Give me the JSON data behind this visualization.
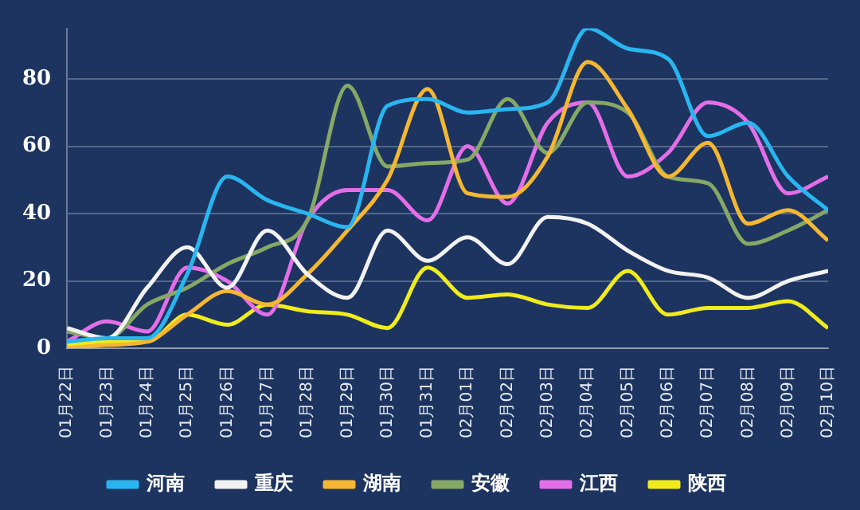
{
  "chart_data": {
    "type": "line",
    "categories": [
      "01月22日",
      "01月23日",
      "01月24日",
      "01月25日",
      "01月26日",
      "01月27日",
      "01月28日",
      "01月29日",
      "01月30日",
      "01月31日",
      "02月01日",
      "02月02日",
      "02月03日",
      "02月04日",
      "02月05日",
      "02月06日",
      "02月07日",
      "02月08日",
      "02月09日",
      "02月10日"
    ],
    "series": [
      {
        "name": "河南",
        "color": "#29b6f0",
        "values": [
          2,
          3,
          3,
          22,
          51,
          44,
          40,
          36,
          72,
          74,
          70,
          71,
          73,
          95,
          89,
          86,
          63,
          67,
          51,
          41
        ]
      },
      {
        "name": "重庆",
        "color": "#f2f2f2",
        "values": [
          6,
          3,
          18,
          30,
          18,
          35,
          22,
          15,
          35,
          26,
          33,
          25,
          39,
          37,
          29,
          23,
          21,
          15,
          20,
          23
        ]
      },
      {
        "name": "湖南",
        "color": "#f5b731",
        "values": [
          0,
          1,
          2,
          10,
          17,
          13,
          22,
          35,
          50,
          77,
          46,
          45,
          57,
          85,
          71,
          51,
          61,
          37,
          41,
          32
        ]
      },
      {
        "name": "安徽",
        "color": "#86a865",
        "values": [
          5,
          3,
          13,
          18,
          25,
          30,
          38,
          78,
          54,
          55,
          56,
          74,
          58,
          73,
          70,
          51,
          49,
          31,
          35,
          41
        ]
      },
      {
        "name": "江西",
        "color": "#e46ee8",
        "values": [
          2,
          8,
          5,
          24,
          20,
          10,
          38,
          47,
          47,
          38,
          60,
          43,
          67,
          73,
          51,
          58,
          73,
          67,
          46,
          51
        ]
      },
      {
        "name": "陕西",
        "color": "#f0ec1c",
        "values": [
          1,
          2,
          2,
          10,
          7,
          13,
          11,
          10,
          6,
          24,
          15,
          16,
          13,
          12,
          23,
          10,
          12,
          12,
          14,
          6
        ]
      }
    ],
    "ylim": [
      0,
      95
    ],
    "yticks": [
      0,
      20,
      40,
      60,
      80
    ],
    "grid": "y",
    "legend": "bottom",
    "marker": "none",
    "line_style": "solid"
  }
}
